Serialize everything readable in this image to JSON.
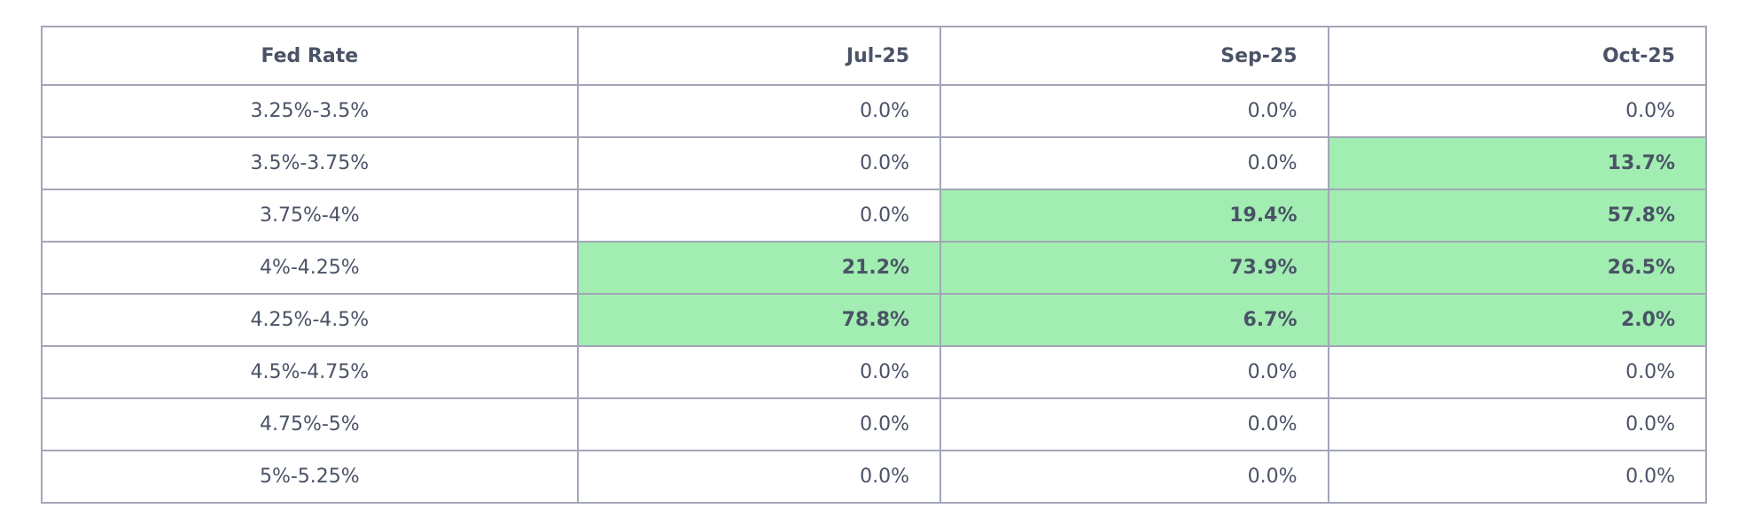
{
  "table": {
    "header": [
      "Fed Rate",
      "Jul-25",
      "Sep-25",
      "Oct-25"
    ],
    "rows": [
      [
        "3.25%-3.5%",
        "0.0%",
        "0.0%",
        "0.0%"
      ],
      [
        "3.5%-3.75%",
        "0.0%",
        "0.0%",
        "13.7%"
      ],
      [
        "3.75%-4%",
        "0.0%",
        "19.4%",
        "57.8%"
      ],
      [
        "4%-4.25%",
        "21.2%",
        "73.9%",
        "26.5%"
      ],
      [
        "4.25%-4.5%",
        "78.8%",
        "6.7%",
        "2.0%"
      ],
      [
        "4.5%-4.75%",
        "0.0%",
        "0.0%",
        "0.0%"
      ],
      [
        "4.75%-5%",
        "0.0%",
        "0.0%",
        "0.0%"
      ],
      [
        "5%-5.25%",
        "0.0%",
        "0.0%",
        "0.0%"
      ]
    ],
    "highlight": [
      [
        false,
        false,
        false,
        false
      ],
      [
        false,
        false,
        false,
        true
      ],
      [
        false,
        false,
        true,
        true
      ],
      [
        false,
        true,
        true,
        true
      ],
      [
        false,
        true,
        true,
        true
      ],
      [
        false,
        false,
        false,
        false
      ],
      [
        false,
        false,
        false,
        false
      ],
      [
        false,
        false,
        false,
        false
      ]
    ],
    "highlight_color": "#a2edb2"
  }
}
